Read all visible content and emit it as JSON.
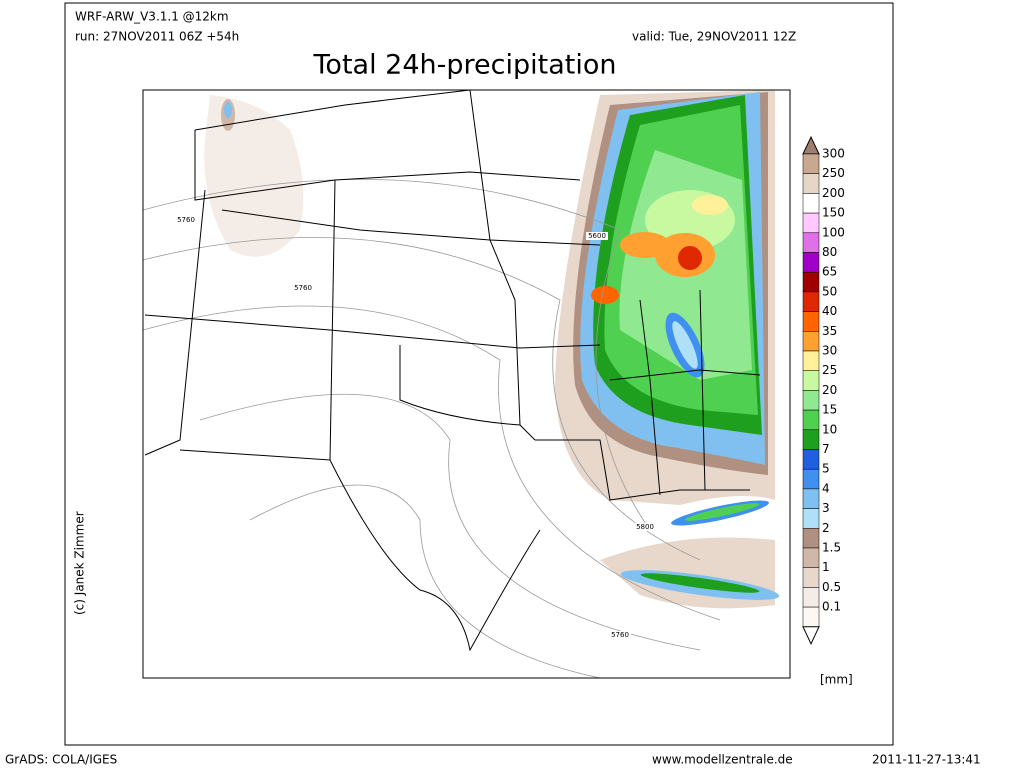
{
  "header": {
    "model": "WRF-ARW_V3.1.1 @12km",
    "run": "run: 27NOV2011 06Z +54h",
    "valid": "valid: Tue, 29NOV2011 12Z",
    "title": "Total 24h-precipitation"
  },
  "map": {
    "contour_labels": [
      "5760",
      "5600",
      "5760",
      "5800",
      "5760"
    ]
  },
  "colorbar": {
    "unit": "[mm]",
    "levels": [
      {
        "value": 300,
        "color": "#c8a890"
      },
      {
        "value": 250,
        "color": "#e6d6c6"
      },
      {
        "value": 200,
        "color": "#ffffff"
      },
      {
        "value": 150,
        "color": "#ffc8ff"
      },
      {
        "value": 100,
        "color": "#e070e8"
      },
      {
        "value": 80,
        "color": "#a000c8"
      },
      {
        "value": 65,
        "color": "#a00000"
      },
      {
        "value": 50,
        "color": "#e02800"
      },
      {
        "value": 40,
        "color": "#ff6400"
      },
      {
        "value": 35,
        "color": "#ffa030"
      },
      {
        "value": 30,
        "color": "#fff09a"
      },
      {
        "value": 25,
        "color": "#c8f8a0"
      },
      {
        "value": 20,
        "color": "#90e890"
      },
      {
        "value": 15,
        "color": "#50d050"
      },
      {
        "value": 10,
        "color": "#1ea01e"
      },
      {
        "value": 7,
        "color": "#2060e0"
      },
      {
        "value": 5,
        "color": "#4090f0"
      },
      {
        "value": 4,
        "color": "#80c0f0"
      },
      {
        "value": 3,
        "color": "#b0e0f8"
      },
      {
        "value": 2,
        "color": "#b09080"
      },
      {
        "value": 1.5,
        "color": "#d0b8a8"
      },
      {
        "value": 1,
        "color": "#e8d8cc"
      },
      {
        "value": 0.5,
        "color": "#f4ece6"
      },
      {
        "value": 0.1,
        "color": "#fcf8f4"
      }
    ]
  },
  "credit": "(c) Janek Zimmer",
  "footer": {
    "left": "GrADS: COLA/IGES",
    "center": "www.modellzentrale.de",
    "right": "2011-11-27-13:41"
  }
}
